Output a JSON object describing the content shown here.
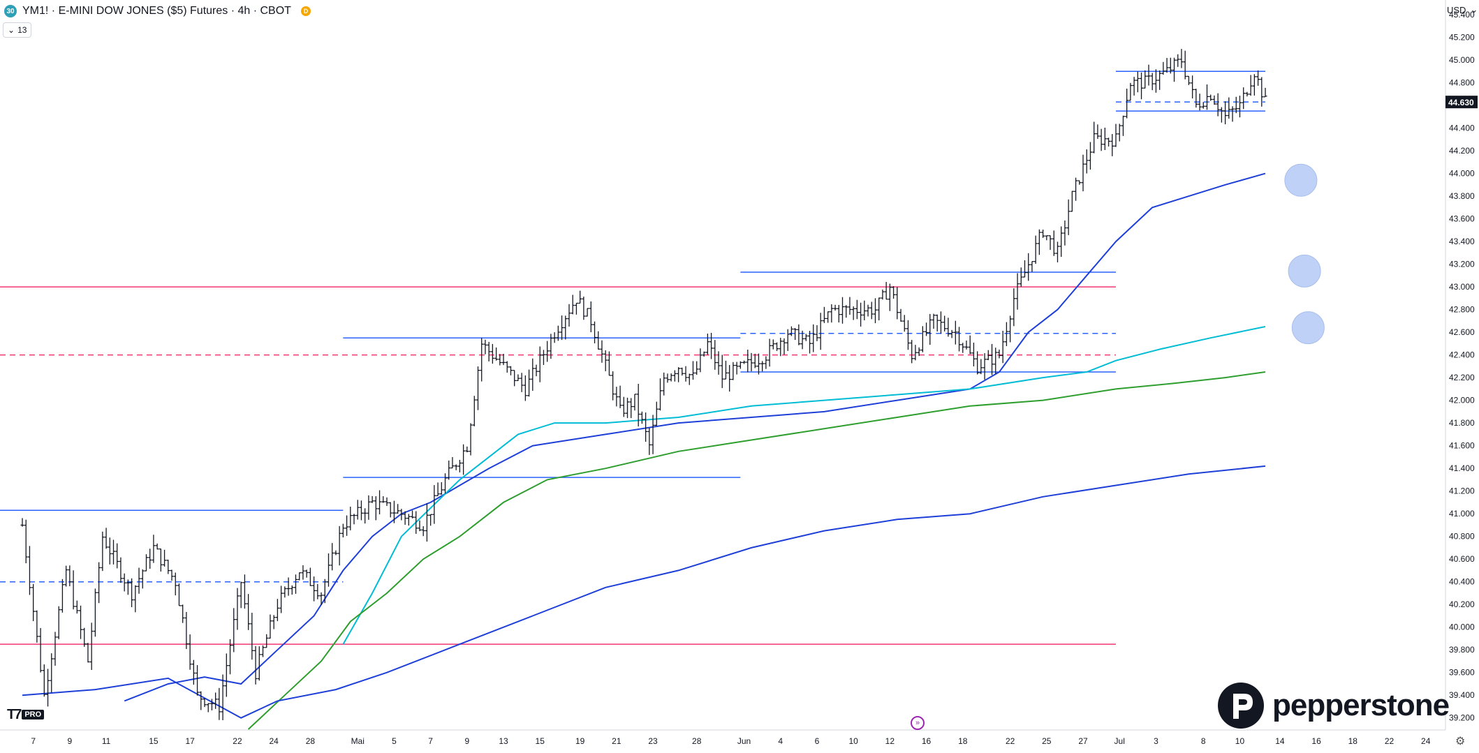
{
  "header": {
    "symbol_badge": "30",
    "title": "YM1! · E-MINI DOW JONES ($5) Futures · 4h · CBOT",
    "d_badge": "D",
    "indicator_toggle_count": "13"
  },
  "price_axis": {
    "currency": "USD",
    "current_price": "44.630",
    "current_price_value": 44630
  },
  "brand": {
    "name": "pepperstone",
    "tv_badge": "PRO"
  },
  "colors": {
    "red_level": "#f23670",
    "blue_level": "#2962ff",
    "ema_blue": "#1e3fd8",
    "ema_cyan": "#00bcd4",
    "ema_green": "#2e9e2e",
    "candle": "#131722",
    "highlight": "#b9cdf6"
  },
  "chart_data": {
    "type": "line",
    "y_axis": {
      "ticks": [
        "39.200",
        "39.400",
        "39.600",
        "39.800",
        "40.000",
        "40.200",
        "40.400",
        "40.600",
        "40.800",
        "41.000",
        "41.200",
        "41.400",
        "41.600",
        "41.800",
        "42.000",
        "42.200",
        "42.400",
        "42.600",
        "42.800",
        "43.000",
        "43.200",
        "43.400",
        "43.600",
        "43.800",
        "44.000",
        "44.200",
        "44.400",
        "44.600",
        "44.800",
        "45.000",
        "45.200",
        "45.400"
      ],
      "tick_values": [
        39200,
        39400,
        39600,
        39800,
        40000,
        40200,
        40400,
        40600,
        40800,
        41000,
        41200,
        41400,
        41600,
        41800,
        42000,
        42200,
        42400,
        42600,
        42800,
        43000,
        43200,
        43400,
        43600,
        43800,
        44000,
        44200,
        44400,
        44600,
        44800,
        45000,
        45200,
        45400
      ],
      "range": [
        39100,
        45800
      ]
    },
    "x_axis": {
      "labels": [
        "7",
        "9",
        "11",
        "15",
        "17",
        "22",
        "24",
        "28",
        "Mai",
        "5",
        "7",
        "9",
        "13",
        "15",
        "19",
        "21",
        "23",
        "28",
        "Jun",
        "4",
        "6",
        "10",
        "12",
        "16",
        "18",
        "22",
        "25",
        "27",
        "Jul",
        "3",
        "8",
        "10",
        "14",
        "16",
        "18",
        "22",
        "24"
      ],
      "label_positions": [
        3,
        13,
        23,
        36,
        46,
        59,
        69,
        79,
        92,
        102,
        112,
        122,
        132,
        142,
        153,
        163,
        173,
        185,
        198,
        208,
        218,
        228,
        238,
        248,
        258,
        271,
        281,
        291,
        301,
        311,
        324,
        334,
        345,
        355,
        365,
        375,
        385
      ]
    },
    "horizontal_levels": [
      {
        "value": 43000,
        "style": "solid",
        "color": "red",
        "from": 0,
        "to": 300
      },
      {
        "value": 42400,
        "style": "dashed",
        "color": "red",
        "from": 0,
        "to": 300
      },
      {
        "value": 39850,
        "style": "solid",
        "color": "red",
        "from": 0,
        "to": 300
      },
      {
        "value": 41030,
        "style": "solid",
        "color": "blue",
        "from": 0,
        "to": 88
      },
      {
        "value": 40400,
        "style": "dashed",
        "color": "blue",
        "from": 0,
        "to": 88
      },
      {
        "value": 42550,
        "style": "solid",
        "color": "blue",
        "from": 88,
        "to": 197
      },
      {
        "value": 41320,
        "style": "solid",
        "color": "blue",
        "from": 88,
        "to": 197
      },
      {
        "value": 43130,
        "style": "solid",
        "color": "blue",
        "from": 197,
        "to": 300
      },
      {
        "value": 42590,
        "style": "dashed",
        "color": "blue",
        "from": 197,
        "to": 300
      },
      {
        "value": 42250,
        "style": "solid",
        "color": "blue",
        "from": 197,
        "to": 300
      },
      {
        "value": 44900,
        "style": "solid",
        "color": "blue",
        "from": 300,
        "to": 341
      },
      {
        "value": 44630,
        "style": "dashed",
        "color": "blue",
        "from": 300,
        "to": 341
      },
      {
        "value": 44550,
        "style": "solid",
        "color": "blue",
        "from": 300,
        "to": 341
      }
    ],
    "price_path": [
      [
        0,
        40900
      ],
      [
        6,
        39400
      ],
      [
        12,
        40500
      ],
      [
        18,
        39700
      ],
      [
        22,
        40800
      ],
      [
        30,
        40300
      ],
      [
        36,
        40700
      ],
      [
        42,
        40400
      ],
      [
        48,
        39400
      ],
      [
        54,
        39300
      ],
      [
        60,
        40400
      ],
      [
        64,
        39600
      ],
      [
        70,
        40200
      ],
      [
        76,
        40500
      ],
      [
        82,
        40300
      ],
      [
        88,
        40900
      ],
      [
        96,
        41100
      ],
      [
        104,
        41000
      ],
      [
        110,
        40900
      ],
      [
        116,
        41300
      ],
      [
        122,
        41600
      ],
      [
        126,
        42500
      ],
      [
        132,
        42300
      ],
      [
        138,
        42100
      ],
      [
        146,
        42600
      ],
      [
        152,
        42900
      ],
      [
        156,
        42700
      ],
      [
        160,
        42300
      ],
      [
        164,
        41900
      ],
      [
        168,
        42000
      ],
      [
        172,
        41600
      ],
      [
        176,
        42200
      ],
      [
        180,
        42300
      ],
      [
        184,
        42200
      ],
      [
        188,
        42500
      ],
      [
        192,
        42200
      ],
      [
        198,
        42300
      ],
      [
        204,
        42400
      ],
      [
        210,
        42600
      ],
      [
        216,
        42500
      ],
      [
        222,
        42800
      ],
      [
        228,
        42800
      ],
      [
        234,
        42800
      ],
      [
        238,
        43000
      ],
      [
        244,
        42400
      ],
      [
        250,
        42700
      ],
      [
        256,
        42600
      ],
      [
        262,
        42300
      ],
      [
        268,
        42400
      ],
      [
        272,
        42900
      ],
      [
        276,
        43200
      ],
      [
        280,
        43500
      ],
      [
        284,
        43300
      ],
      [
        288,
        43800
      ],
      [
        294,
        44300
      ],
      [
        300,
        44300
      ],
      [
        304,
        44800
      ],
      [
        308,
        44800
      ],
      [
        314,
        44900
      ],
      [
        318,
        45000
      ],
      [
        322,
        44600
      ],
      [
        326,
        44700
      ],
      [
        330,
        44500
      ],
      [
        334,
        44600
      ],
      [
        338,
        44900
      ],
      [
        341,
        44630
      ]
    ],
    "series": [
      {
        "color": "ema_blue",
        "values": [
          [
            28,
            39350
          ],
          [
            40,
            39500
          ],
          [
            50,
            39560
          ],
          [
            60,
            39500
          ],
          [
            70,
            39800
          ],
          [
            80,
            40100
          ],
          [
            88,
            40500
          ],
          [
            96,
            40800
          ],
          [
            104,
            41000
          ],
          [
            112,
            41100
          ],
          [
            120,
            41250
          ],
          [
            128,
            41400
          ],
          [
            140,
            41600
          ],
          [
            160,
            41700
          ],
          [
            180,
            41800
          ],
          [
            200,
            41850
          ],
          [
            220,
            41900
          ],
          [
            240,
            42000
          ],
          [
            260,
            42100
          ],
          [
            268,
            42250
          ],
          [
            276,
            42600
          ],
          [
            284,
            42800
          ],
          [
            292,
            43100
          ],
          [
            300,
            43400
          ],
          [
            310,
            43700
          ],
          [
            320,
            43800
          ],
          [
            330,
            43900
          ],
          [
            341,
            44000
          ]
        ]
      },
      {
        "color": "ema_cyan",
        "values": [
          [
            88,
            39850
          ],
          [
            96,
            40300
          ],
          [
            104,
            40800
          ],
          [
            112,
            41050
          ],
          [
            120,
            41300
          ],
          [
            128,
            41500
          ],
          [
            136,
            41700
          ],
          [
            146,
            41800
          ],
          [
            160,
            41800
          ],
          [
            180,
            41850
          ],
          [
            200,
            41950
          ],
          [
            220,
            42000
          ],
          [
            240,
            42050
          ],
          [
            260,
            42100
          ],
          [
            280,
            42200
          ],
          [
            292,
            42250
          ],
          [
            300,
            42350
          ],
          [
            312,
            42450
          ],
          [
            326,
            42550
          ],
          [
            341,
            42650
          ]
        ]
      },
      {
        "color": "ema_green",
        "values": [
          [
            62,
            39100
          ],
          [
            72,
            39400
          ],
          [
            82,
            39700
          ],
          [
            90,
            40050
          ],
          [
            100,
            40300
          ],
          [
            110,
            40600
          ],
          [
            120,
            40800
          ],
          [
            132,
            41100
          ],
          [
            144,
            41300
          ],
          [
            160,
            41400
          ],
          [
            180,
            41550
          ],
          [
            200,
            41650
          ],
          [
            220,
            41750
          ],
          [
            240,
            41850
          ],
          [
            260,
            41950
          ],
          [
            280,
            42000
          ],
          [
            300,
            42100
          ],
          [
            316,
            42150
          ],
          [
            330,
            42200
          ],
          [
            341,
            42250
          ]
        ]
      },
      {
        "color": "ema_blue",
        "values": [
          [
            0,
            39400
          ],
          [
            20,
            39450
          ],
          [
            40,
            39550
          ],
          [
            60,
            39200
          ],
          [
            70,
            39350
          ],
          [
            86,
            39450
          ],
          [
            100,
            39600
          ],
          [
            120,
            39850
          ],
          [
            140,
            40100
          ],
          [
            160,
            40350
          ],
          [
            180,
            40500
          ],
          [
            200,
            40700
          ],
          [
            220,
            40850
          ],
          [
            240,
            40950
          ],
          [
            260,
            41000
          ],
          [
            280,
            41150
          ],
          [
            300,
            41250
          ],
          [
            320,
            41350
          ],
          [
            341,
            41420
          ]
        ]
      }
    ],
    "highlight_markers": [
      {
        "x": 345,
        "y": 43940
      },
      {
        "x": 346,
        "y": 43140
      },
      {
        "x": 347,
        "y": 42640
      }
    ]
  }
}
